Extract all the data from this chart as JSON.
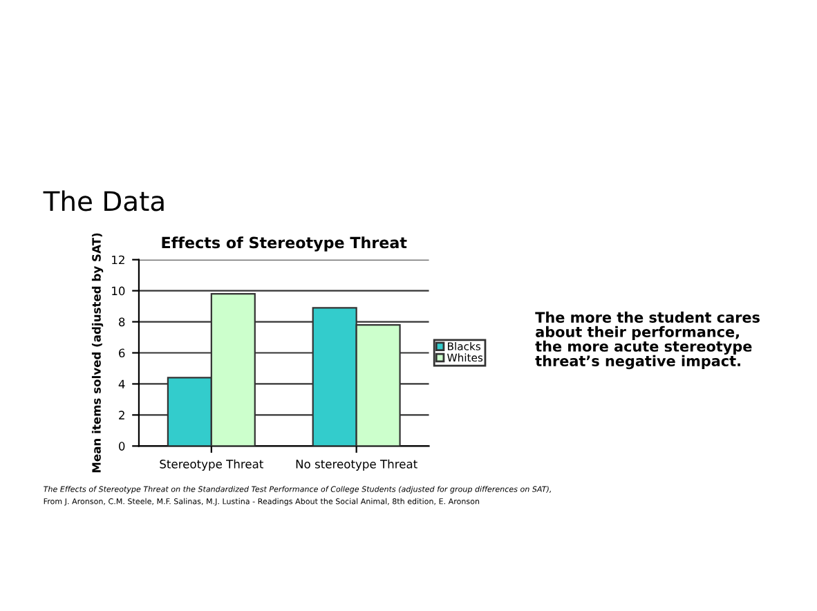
{
  "chart_data": {
    "type": "bar",
    "title": "Effects of Stereotype Threat",
    "ylabel": "Mean items solved (adjusted by SAT)",
    "categories": [
      "Stereotype Threat",
      "No stereotype Threat"
    ],
    "series": [
      {
        "name": "Blacks",
        "color": "#33cccc",
        "values": [
          4.4,
          8.9
        ]
      },
      {
        "name": "Whites",
        "color": "#ccffcc",
        "values": [
          9.8,
          7.8
        ]
      }
    ],
    "ylim": [
      0,
      12
    ],
    "yticks": [
      0,
      2,
      4,
      6,
      8,
      10,
      12
    ],
    "grid": "y",
    "legend": "right",
    "annotations": [
      "The Data",
      "The more the student cares about their performance, the more acute stereotype threat’s negative impact.",
      "The Effects of Stereotype Threat on the Standardized Test Performance of College Students (adjusted for group differences on SAT),",
      "From J. Aronson, C.M. Steele, M.F. Salinas, M.J. Lustina - Readings About the Social Animal, 8th edition, E. Aronson"
    ]
  }
}
